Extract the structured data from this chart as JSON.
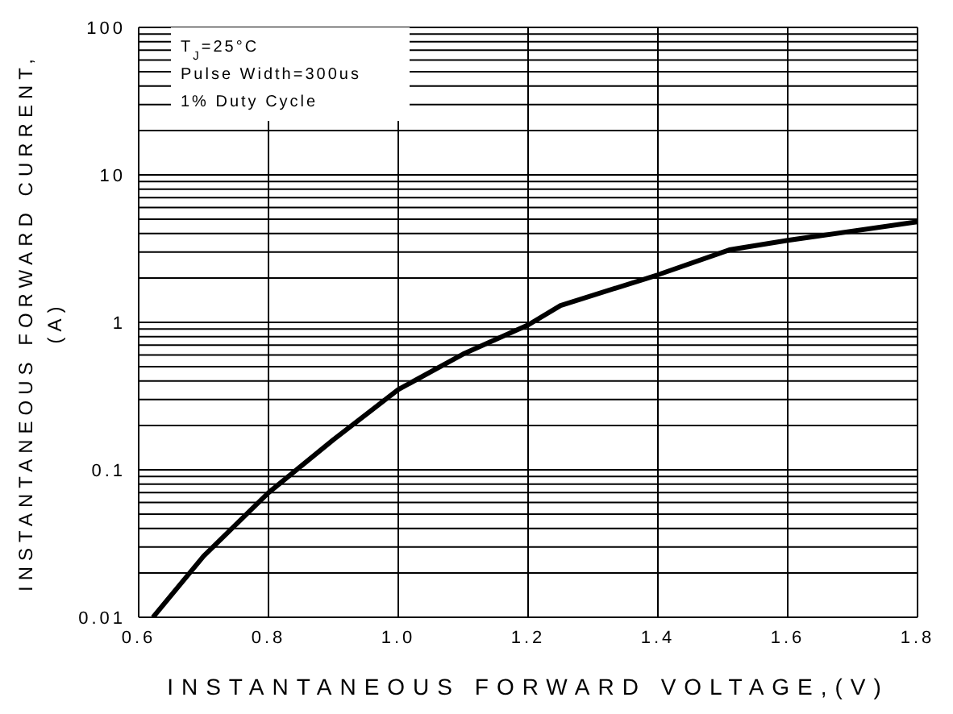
{
  "chart_data": {
    "type": "line",
    "xlabel": "INSTANTANEOUS FORWARD VOLTAGE,(V)",
    "ylabel": "INSTANTANEOUS FORWARD CURRENT,\n(A)",
    "annotations": [
      "T$_{J}$=25°C",
      "Pulse Width=300us",
      "1% Duty Cycle"
    ],
    "x": [
      0.622,
      0.7,
      0.8,
      0.9,
      1.0,
      1.1,
      1.2,
      1.25,
      1.4,
      1.51,
      1.6,
      1.8
    ],
    "series": [
      {
        "color": "#000000",
        "values": [
          0.01,
          0.026,
          0.07,
          0.16,
          0.35,
          0.61,
          0.96,
          1.3,
          2.1,
          3.1,
          3.6,
          4.8
        ]
      }
    ],
    "xlim": [
      0.6,
      1.8
    ],
    "xticks": [
      0.6,
      0.8,
      {
        "value": 1.0,
        "label": "1.0"
      },
      1.2,
      1.4,
      1.6,
      1.8
    ],
    "ylim": [
      0.01,
      100
    ],
    "yticks": [
      0.01,
      {
        "value": 0.02,
        "label": null
      },
      {
        "value": 0.03,
        "label": null
      },
      {
        "value": 0.04,
        "label": null
      },
      {
        "value": 0.05,
        "label": null
      },
      {
        "value": 0.06,
        "label": null
      },
      {
        "value": 0.07,
        "label": null
      },
      {
        "value": 0.08,
        "label": null
      },
      {
        "value": 0.09,
        "label": null
      },
      0.1,
      {
        "value": 0.2,
        "label": null
      },
      {
        "value": 0.3,
        "label": null
      },
      {
        "value": 0.4,
        "label": null
      },
      {
        "value": 0.5,
        "label": null
      },
      {
        "value": 0.6,
        "label": null
      },
      {
        "value": 0.7,
        "label": null
      },
      {
        "value": 0.8,
        "label": null
      },
      {
        "value": 0.9,
        "label": null
      },
      1,
      {
        "value": 2,
        "label": null
      },
      {
        "value": 3,
        "label": null
      },
      {
        "value": 4,
        "label": null
      },
      {
        "value": 5,
        "label": null
      },
      {
        "value": 6,
        "label": null
      },
      {
        "value": 7,
        "label": null
      },
      {
        "value": 8,
        "label": null
      },
      {
        "value": 9,
        "label": null
      },
      10,
      {
        "value": 20,
        "label": null
      },
      {
        "value": 30,
        "label": null
      },
      {
        "value": 40,
        "label": null
      },
      {
        "value": 50,
        "label": null
      },
      {
        "value": 60,
        "label": null
      },
      {
        "value": 70,
        "label": null
      },
      {
        "value": 80,
        "label": null
      },
      {
        "value": 90,
        "label": null
      },
      100
    ],
    "log": "y",
    "grid": true,
    "legend": false,
    "marker": "none",
    "line_style": "solid"
  }
}
